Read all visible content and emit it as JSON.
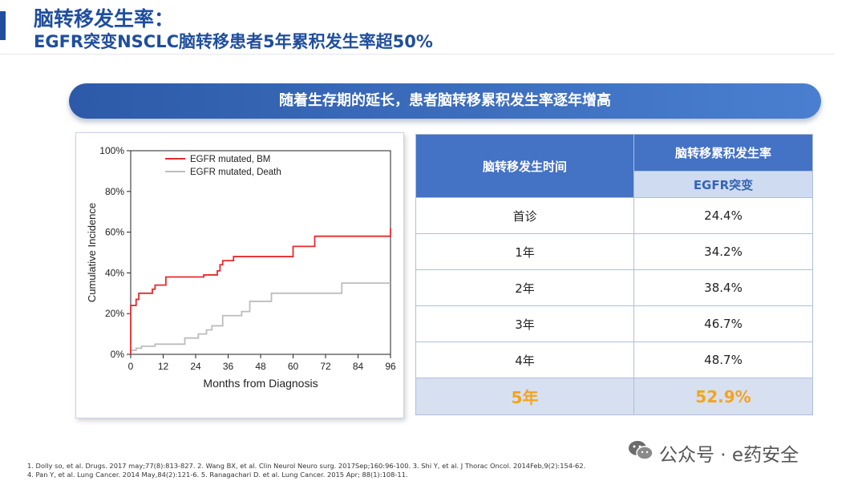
{
  "slide": {
    "title_line1": "脑转移发生率：",
    "title_line2": "EGFR突变NSCLC脑转移患者5年累积发生率超50%",
    "banner": "随着生存期的延长，患者脑转移累积发生率逐年增高"
  },
  "chart_data": {
    "type": "line",
    "xlabel": "Months from Diagnosis",
    "ylabel": "Cumulative Incidence",
    "x_ticks": [
      0,
      12,
      24,
      36,
      48,
      60,
      72,
      84,
      96
    ],
    "y_ticks": [
      "0%",
      "20%",
      "40%",
      "60%",
      "80%",
      "100%"
    ],
    "xlim": [
      0,
      96
    ],
    "ylim": [
      0,
      100
    ],
    "legend_position": "top-left",
    "series": [
      {
        "name": "EGFR mutated, BM",
        "color": "#e52b2b",
        "points": [
          [
            0,
            0
          ],
          [
            0,
            24
          ],
          [
            2,
            24
          ],
          [
            2,
            27
          ],
          [
            3,
            27
          ],
          [
            3,
            30
          ],
          [
            8,
            30
          ],
          [
            8,
            32
          ],
          [
            9,
            32
          ],
          [
            9,
            34
          ],
          [
            13,
            34
          ],
          [
            13,
            38
          ],
          [
            27,
            38
          ],
          [
            27,
            39
          ],
          [
            32,
            39
          ],
          [
            32,
            41
          ],
          [
            33,
            41
          ],
          [
            33,
            44
          ],
          [
            34,
            44
          ],
          [
            34,
            46
          ],
          [
            38,
            46
          ],
          [
            38,
            48
          ],
          [
            60,
            48
          ],
          [
            60,
            53
          ],
          [
            68,
            53
          ],
          [
            68,
            58
          ],
          [
            96,
            58
          ],
          [
            96,
            62
          ]
        ]
      },
      {
        "name": "EGFR mutated, Death",
        "color": "#bdbdbd",
        "points": [
          [
            0,
            2
          ],
          [
            2,
            2
          ],
          [
            2,
            3
          ],
          [
            4,
            3
          ],
          [
            4,
            4
          ],
          [
            9,
            4
          ],
          [
            9,
            5
          ],
          [
            20,
            5
          ],
          [
            20,
            8
          ],
          [
            25,
            8
          ],
          [
            25,
            10
          ],
          [
            28,
            10
          ],
          [
            28,
            12
          ],
          [
            30,
            12
          ],
          [
            30,
            14
          ],
          [
            34,
            14
          ],
          [
            34,
            19
          ],
          [
            41,
            19
          ],
          [
            41,
            21
          ],
          [
            44,
            21
          ],
          [
            44,
            26
          ],
          [
            52,
            26
          ],
          [
            52,
            30
          ],
          [
            78,
            30
          ],
          [
            78,
            35
          ],
          [
            96,
            35
          ]
        ]
      }
    ]
  },
  "table": {
    "header_time": "脑转移发生时间",
    "header_rate": "脑转移累积发生率",
    "header_sub": "EGFR突变",
    "rows": [
      {
        "time": "首诊",
        "rate": "24.4%"
      },
      {
        "time": "1年",
        "rate": "34.2%"
      },
      {
        "time": "2年",
        "rate": "38.4%"
      },
      {
        "time": "3年",
        "rate": "46.7%"
      },
      {
        "time": "4年",
        "rate": "48.7%"
      }
    ],
    "highlight": {
      "time": "5年",
      "rate": "52.9%"
    }
  },
  "references": {
    "line1": "1. Dolly so, et al. Drugs. 2017 may;77(8):813-827.      2. Wang BX, et al. Clin Neurol Neuro surg. 2017Sep;160:96-100. 3. Shi Y, et al. J Thorac Oncol. 2014Feb,9(2):154-62.",
    "line2": "4. Pan Y, et al. Lung Cancer. 2014 May,84(2):121-6.  5. Ranagachari D. et al. Lung Cancer. 2015 Apr; 88(1):108-11."
  },
  "watermark": {
    "text": "公众号 · e药安全",
    "icon": "wechat-icon",
    "color": "#555555"
  }
}
